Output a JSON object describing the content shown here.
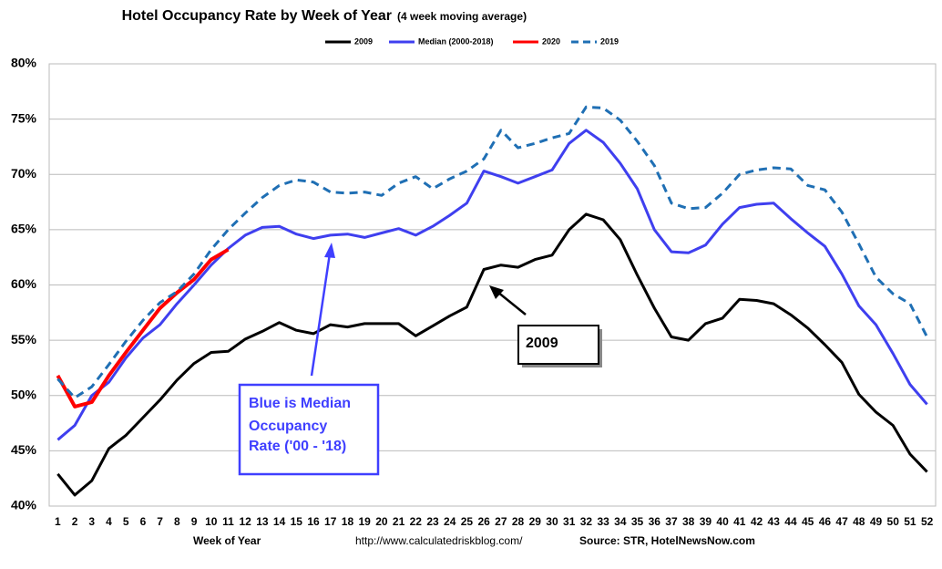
{
  "chart_data": {
    "type": "line",
    "title": "Hotel Occupancy Rate by  Week of Year",
    "title_note": "(4 week moving average)",
    "x_label": "Week of Year",
    "url": "http://www.calculatedriskblog.com/",
    "source": "Source: STR, HotelNewsNow.com",
    "annotations": [
      {
        "lines": [
          "Blue is Median",
          "Occupancy",
          "Rate ('00 - '18)"
        ],
        "color": "#3f3fff"
      },
      {
        "lines": [
          "2009"
        ],
        "color": "#000000"
      }
    ],
    "categories": [
      1,
      2,
      3,
      4,
      5,
      6,
      7,
      8,
      9,
      10,
      11,
      12,
      13,
      14,
      15,
      16,
      17,
      18,
      19,
      20,
      21,
      22,
      23,
      24,
      25,
      26,
      27,
      28,
      29,
      30,
      31,
      32,
      33,
      34,
      35,
      36,
      37,
      38,
      39,
      40,
      41,
      42,
      43,
      44,
      45,
      46,
      47,
      48,
      49,
      50,
      51,
      52
    ],
    "ylim": [
      40,
      80
    ],
    "yticks": [
      {
        "value": 40,
        "label": "40%"
      },
      {
        "value": 45,
        "label": "45%"
      },
      {
        "value": 50,
        "label": "50%"
      },
      {
        "value": 55,
        "label": "55%"
      },
      {
        "value": 60,
        "label": "60%"
      },
      {
        "value": 65,
        "label": "65%"
      },
      {
        "value": 70,
        "label": "70%"
      },
      {
        "value": 75,
        "label": "75%"
      },
      {
        "value": 80,
        "label": "80%"
      }
    ],
    "grid": true,
    "legend": "top",
    "series": [
      {
        "name": "2009",
        "color": "#000000",
        "width": 3,
        "line_style": "solid",
        "values": [
          42.9,
          41.0,
          42.3,
          45.2,
          46.4,
          48.0,
          49.6,
          51.4,
          52.9,
          53.9,
          54.0,
          55.1,
          55.8,
          56.6,
          55.9,
          55.6,
          56.4,
          56.2,
          56.5,
          56.5,
          56.5,
          55.4,
          56.3,
          57.2,
          58.0,
          61.4,
          61.8,
          61.6,
          62.3,
          62.7,
          65.0,
          66.4,
          65.9,
          64.1,
          60.9,
          57.9,
          55.3,
          55.0,
          56.5,
          57.0,
          58.7,
          58.6,
          58.3,
          57.3,
          56.1,
          54.6,
          53.0,
          50.1,
          48.5,
          47.3,
          44.7,
          43.1
        ]
      },
      {
        "name": "Median (2000-2018)",
        "color": "#3f3fef",
        "width": 3,
        "line_style": "solid",
        "values": [
          46.0,
          47.3,
          50.0,
          51.2,
          53.4,
          55.2,
          56.4,
          58.3,
          60.0,
          61.8,
          63.3,
          64.5,
          65.2,
          65.3,
          64.6,
          64.2,
          64.5,
          64.6,
          64.3,
          64.7,
          65.1,
          64.5,
          65.3,
          66.3,
          67.4,
          70.3,
          69.8,
          69.2,
          69.8,
          70.4,
          72.8,
          74.0,
          72.9,
          71.0,
          68.7,
          65.0,
          63.0,
          62.9,
          63.6,
          65.5,
          67.0,
          67.3,
          67.4,
          66.0,
          64.7,
          63.5,
          61.0,
          58.1,
          56.4,
          53.8,
          51.0,
          49.2
        ]
      },
      {
        "name": "2020",
        "color": "#ff0000",
        "width": 4,
        "line_style": "solid",
        "values": [
          51.8,
          49.0,
          49.4,
          51.8,
          53.9,
          55.9,
          57.9,
          59.3,
          60.5,
          62.3,
          63.2,
          null,
          null,
          null,
          null,
          null,
          null,
          null,
          null,
          null,
          null,
          null,
          null,
          null,
          null,
          null,
          null,
          null,
          null,
          null,
          null,
          null,
          null,
          null,
          null,
          null,
          null,
          null,
          null,
          null,
          null,
          null,
          null,
          null,
          null,
          null,
          null,
          null,
          null,
          null,
          null,
          null
        ]
      },
      {
        "name": "2019",
        "color": "#1f6fb4",
        "width": 3,
        "line_style": "dashed",
        "values": [
          51.5,
          49.8,
          50.8,
          52.8,
          54.9,
          56.8,
          58.4,
          59.4,
          61.0,
          63.2,
          65.0,
          66.5,
          67.9,
          69.0,
          69.5,
          69.3,
          68.4,
          68.3,
          68.4,
          68.1,
          69.2,
          69.8,
          68.7,
          69.6,
          70.3,
          71.4,
          74.0,
          72.4,
          72.8,
          73.3,
          73.7,
          76.1,
          76.0,
          74.9,
          73.0,
          70.8,
          67.4,
          66.9,
          67.0,
          68.3,
          70.0,
          70.4,
          70.6,
          70.5,
          69.0,
          68.6,
          66.6,
          63.7,
          60.7,
          59.2,
          58.3,
          55.3
        ]
      }
    ]
  }
}
